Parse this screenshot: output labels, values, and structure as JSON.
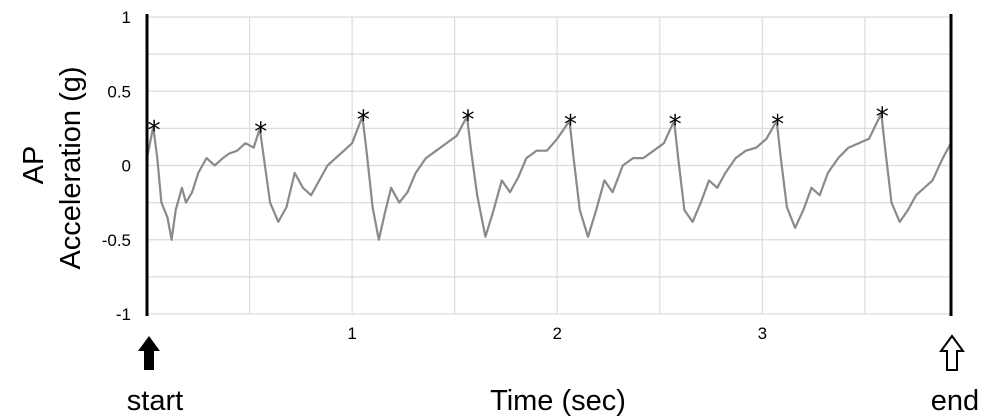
{
  "chart_data": {
    "type": "line",
    "title": "",
    "xlabel": "Time (sec)",
    "ylabel_line1": "AP",
    "ylabel_line2": "Acceleration (g)",
    "xlim": [
      0,
      3.92
    ],
    "ylim": [
      -1,
      1
    ],
    "x_tick_labels": [
      "1",
      "2",
      "3"
    ],
    "x_ticks": [
      1,
      2,
      3
    ],
    "y_ticks": [
      1,
      0.5,
      0,
      -0.5,
      -1
    ],
    "y_tick_labels": [
      "1",
      "0.5",
      "0",
      "-0.5",
      "-1"
    ],
    "grid": true,
    "series_color": "#8a8a8a",
    "start_label": "start",
    "end_label": "end",
    "peak_marker": "*",
    "peaks": [
      {
        "x": 0.03,
        "y": 0.26
      },
      {
        "x": 0.55,
        "y": 0.25
      },
      {
        "x": 1.05,
        "y": 0.33
      },
      {
        "x": 1.56,
        "y": 0.33
      },
      {
        "x": 2.06,
        "y": 0.3
      },
      {
        "x": 2.57,
        "y": 0.3
      },
      {
        "x": 3.07,
        "y": 0.3
      },
      {
        "x": 3.58,
        "y": 0.35
      }
    ],
    "series": [
      {
        "x": [
          0.0,
          0.03,
          0.05,
          0.07,
          0.1,
          0.12,
          0.14,
          0.17,
          0.19,
          0.22,
          0.25,
          0.29,
          0.33,
          0.37,
          0.4,
          0.44,
          0.48,
          0.52,
          0.55,
          0.57,
          0.6,
          0.64,
          0.68,
          0.72,
          0.76,
          0.8,
          0.84,
          0.88,
          0.92,
          0.96,
          1.0,
          1.05,
          1.07,
          1.1,
          1.13,
          1.16,
          1.19,
          1.23,
          1.27,
          1.31,
          1.36,
          1.41,
          1.46,
          1.51,
          1.56,
          1.58,
          1.61,
          1.65,
          1.69,
          1.73,
          1.77,
          1.81,
          1.85,
          1.9,
          1.95,
          2.0,
          2.06,
          2.08,
          2.11,
          2.15,
          2.19,
          2.23,
          2.27,
          2.32,
          2.37,
          2.42,
          2.47,
          2.52,
          2.57,
          2.59,
          2.62,
          2.66,
          2.7,
          2.74,
          2.78,
          2.82,
          2.87,
          2.92,
          2.97,
          3.02,
          3.07,
          3.09,
          3.12,
          3.16,
          3.2,
          3.24,
          3.28,
          3.32,
          3.37,
          3.42,
          3.47,
          3.52,
          3.58,
          3.6,
          3.63,
          3.67,
          3.71,
          3.75,
          3.79,
          3.83,
          3.88,
          3.92
        ],
        "y": [
          0.05,
          0.26,
          0.05,
          -0.25,
          -0.35,
          -0.5,
          -0.3,
          -0.15,
          -0.25,
          -0.18,
          -0.05,
          0.05,
          0.0,
          0.05,
          0.08,
          0.1,
          0.15,
          0.12,
          0.25,
          0.05,
          -0.25,
          -0.38,
          -0.28,
          -0.05,
          -0.15,
          -0.2,
          -0.1,
          0.0,
          0.05,
          0.1,
          0.15,
          0.33,
          0.1,
          -0.28,
          -0.5,
          -0.32,
          -0.15,
          -0.25,
          -0.18,
          -0.05,
          0.05,
          0.1,
          0.15,
          0.2,
          0.33,
          0.1,
          -0.2,
          -0.48,
          -0.3,
          -0.1,
          -0.18,
          -0.08,
          0.05,
          0.1,
          0.1,
          0.18,
          0.3,
          0.05,
          -0.3,
          -0.48,
          -0.3,
          -0.1,
          -0.18,
          0.0,
          0.05,
          0.05,
          0.1,
          0.15,
          0.3,
          0.05,
          -0.3,
          -0.38,
          -0.25,
          -0.1,
          -0.15,
          -0.05,
          0.05,
          0.1,
          0.12,
          0.18,
          0.3,
          0.05,
          -0.28,
          -0.42,
          -0.3,
          -0.15,
          -0.2,
          -0.05,
          0.05,
          0.12,
          0.15,
          0.18,
          0.35,
          0.1,
          -0.25,
          -0.38,
          -0.3,
          -0.2,
          -0.15,
          -0.1,
          0.05,
          0.15
        ]
      }
    ]
  }
}
